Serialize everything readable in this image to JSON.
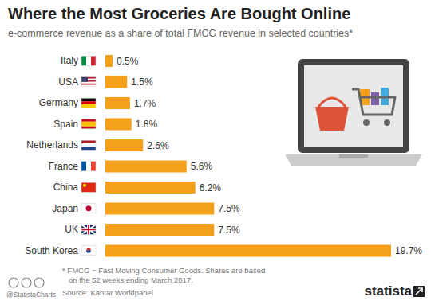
{
  "chart_data": {
    "type": "bar",
    "title": "Where the Most Groceries Are Bought Online",
    "subtitle": "e-commerce revenue as a share of total FMCG revenue in selected countries*",
    "orientation": "horizontal",
    "categories": [
      "Italy",
      "USA",
      "Germany",
      "Spain",
      "Netherlands",
      "France",
      "China",
      "Japan",
      "UK",
      "South Korea"
    ],
    "values": [
      0.5,
      1.5,
      1.7,
      1.8,
      2.6,
      5.6,
      6.2,
      7.5,
      7.5,
      19.7
    ],
    "value_labels": [
      "0.5%",
      "1.5%",
      "1.7%",
      "1.8%",
      "2.6%",
      "5.6%",
      "6.2%",
      "7.5%",
      "7.5%",
      "19.7%"
    ],
    "data_labels": true,
    "color": "#f5a01a",
    "tick_labels": "y",
    "grid": false,
    "notes": [
      "* FMCG = Fast Moving Consumer Goods. Shares are based",
      "on the 52 weeks ending March 2017."
    ],
    "source": "Source: Kantar Worldpanel",
    "credit": "@StatistaCharts",
    "logo": "statista"
  }
}
